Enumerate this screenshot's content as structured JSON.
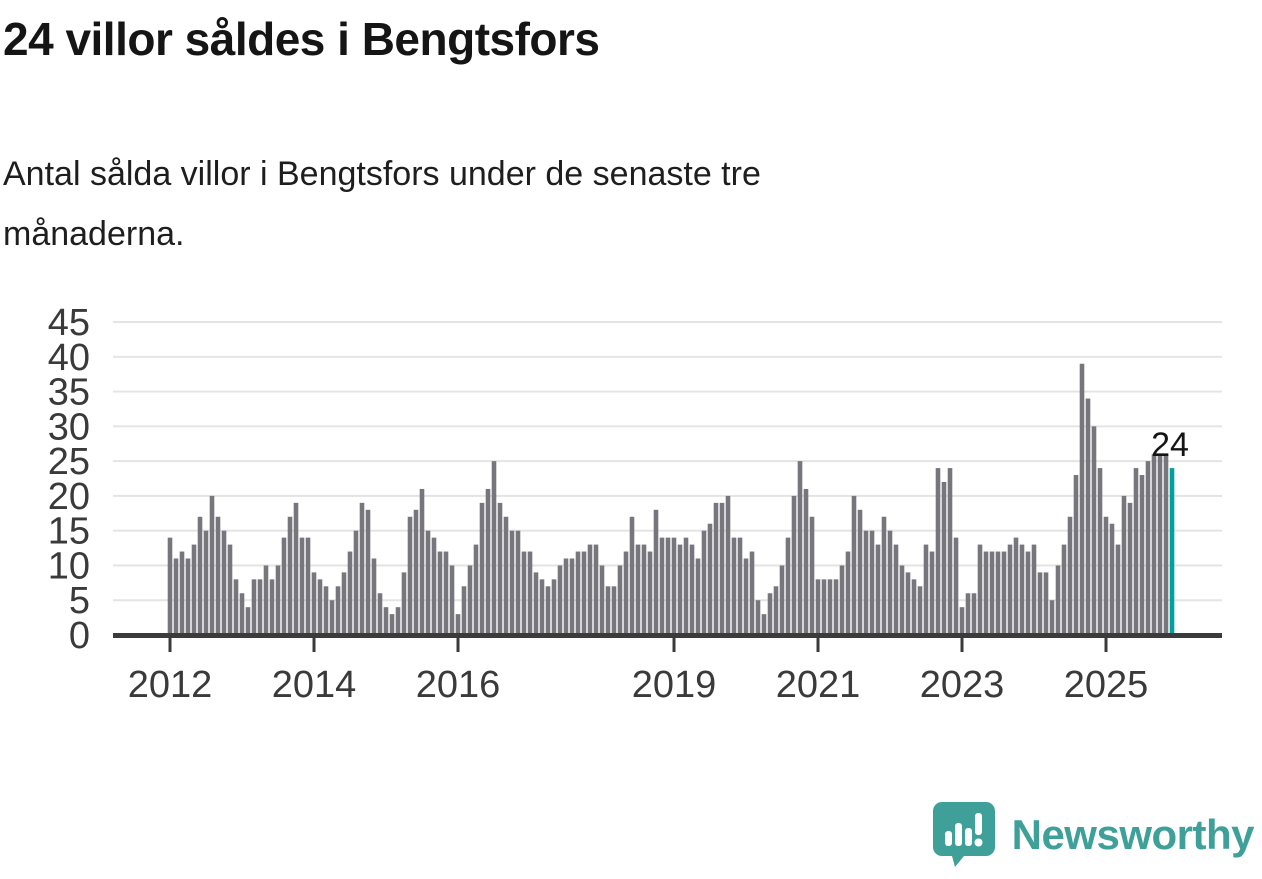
{
  "header": {
    "title": "24 villor såldes i Bengtsfors",
    "subtitle_line1": "Antal sålda villor i Bengtsfors under de senaste tre",
    "subtitle_line2": "månaderna."
  },
  "chart_data": {
    "type": "bar",
    "title": "24 villor såldes i Bengtsfors",
    "xlabel": "",
    "ylabel": "",
    "x_start": "2012-01",
    "x_end": "2025-12",
    "frequency": "monthly",
    "ylim": [
      0,
      45
    ],
    "y_ticks": [
      0,
      5,
      10,
      15,
      20,
      25,
      30,
      35,
      40,
      45
    ],
    "x_tick_years": [
      2012,
      2014,
      2016,
      2019,
      2021,
      2023,
      2025
    ],
    "grid": "horizontal",
    "legend": "none",
    "annotation_last_value": "24",
    "values": [
      14,
      11,
      12,
      11,
      13,
      17,
      15,
      20,
      17,
      15,
      13,
      8,
      6,
      4,
      8,
      8,
      10,
      8,
      10,
      14,
      17,
      19,
      14,
      14,
      9,
      8,
      7,
      5,
      7,
      9,
      12,
      15,
      19,
      18,
      11,
      6,
      4,
      3,
      4,
      9,
      17,
      18,
      21,
      15,
      14,
      12,
      12,
      10,
      3,
      7,
      10,
      13,
      19,
      21,
      25,
      19,
      17,
      15,
      15,
      12,
      12,
      9,
      8,
      7,
      8,
      10,
      11,
      11,
      12,
      12,
      13,
      13,
      10,
      7,
      7,
      10,
      12,
      17,
      13,
      13,
      12,
      18,
      14,
      14,
      14,
      13,
      14,
      13,
      11,
      15,
      16,
      19,
      19,
      20,
      14,
      14,
      11,
      12,
      5,
      3,
      6,
      7,
      10,
      14,
      20,
      25,
      21,
      17,
      8,
      8,
      8,
      8,
      10,
      12,
      20,
      18,
      15,
      15,
      13,
      17,
      15,
      13,
      10,
      9,
      8,
      7,
      13,
      12,
      24,
      22,
      24,
      14,
      4,
      6,
      6,
      13,
      12,
      12,
      12,
      12,
      13,
      14,
      13,
      12,
      13,
      9,
      9,
      5,
      10,
      13,
      17,
      23,
      39,
      34,
      30,
      24,
      17,
      16,
      13,
      20,
      19,
      24,
      23,
      25,
      26,
      26,
      26,
      24
    ],
    "highlight_last_bar": true,
    "colors": {
      "bar": "#76767c",
      "highlight": "#00a0a0",
      "gridline": "#e4e4e4",
      "axis": "#3b3b3b",
      "tick_label": "#3a3a3a",
      "annotation_text": "#151515"
    }
  },
  "footer": {
    "brand": "Newsworthy",
    "brand_color": "#3fa09a",
    "logo_icon": "speech-bubble-bar-chart-exclamation"
  }
}
